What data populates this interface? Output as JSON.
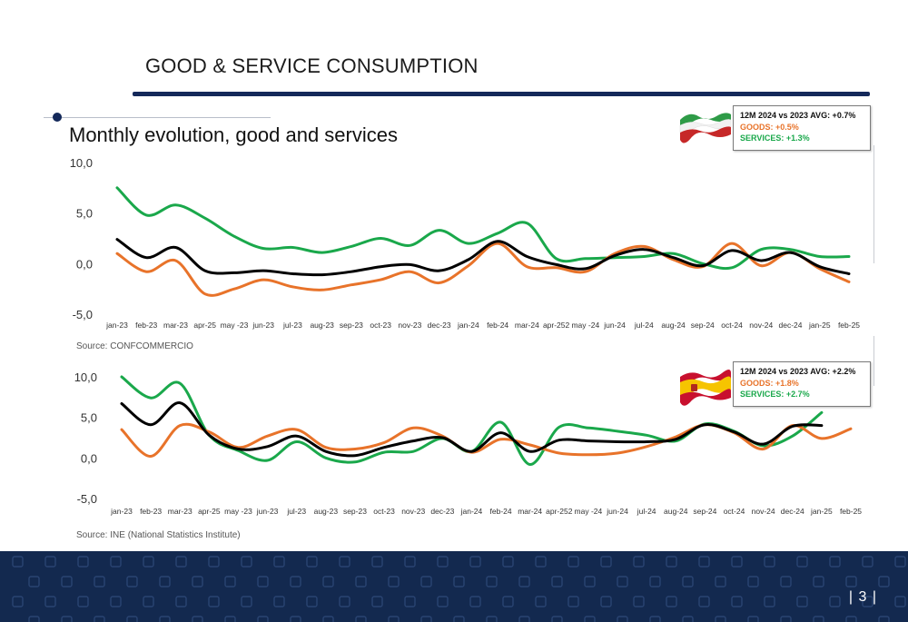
{
  "slide": {
    "title": "GOOD & SERVICE CONSUMPTION",
    "subtitle": "Monthly evolution, good and services",
    "page_number": "| 3 |"
  },
  "colors": {
    "navy": "#14295a",
    "goods": "#e8732a",
    "services": "#1aa84b",
    "total": "#000000"
  },
  "charts": [
    {
      "id": "italy",
      "flag": "italy-flag-icon",
      "source": "Source: CONFCOMMERCIO",
      "legend": {
        "line1": "12M 2024 vs 2023 AVG:  +0.7%",
        "line2": "GOODS: +0.5%",
        "line3": "SERVICES: +1.3%"
      }
    },
    {
      "id": "spain",
      "flag": "spain-flag-icon",
      "source": "Source: INE (National Statistics Institute)",
      "legend": {
        "line1": "12M 2024 vs 2023 AVG:  +2.2%",
        "line2": "GOODS: +1.8%",
        "line3": "SERVICES: +2.7%"
      }
    }
  ],
  "chart_data": [
    {
      "type": "line",
      "categories": [
        "jan-23",
        "feb-23",
        "mar-23",
        "apr-25",
        "may -23",
        "jun-23",
        "jul-23",
        "aug-23",
        "sep-23",
        "oct-23",
        "nov-23",
        "dec-23",
        "jan-24",
        "feb-24",
        "mar-24",
        "apr-252",
        "may -24",
        "jun-24",
        "jul-24",
        "aug-24",
        "sep-24",
        "oct-24",
        "nov-24",
        "dec-24",
        "jan-25",
        "feb-25"
      ],
      "yticks": [
        "10,0",
        "5,0",
        "0,0",
        "-5,0"
      ],
      "ytick_values": [
        10,
        5,
        0,
        -5
      ],
      "ylim": [
        -5,
        10
      ],
      "series": [
        {
          "key": "services",
          "values": [
            7.5,
            4.8,
            5.8,
            4.5,
            2.7,
            1.5,
            1.6,
            1.1,
            1.7,
            2.5,
            1.8,
            3.3,
            2.0,
            3.0,
            4.0,
            0.5,
            0.5,
            0.6,
            0.7,
            1.0,
            0.0,
            -0.4,
            1.4,
            1.4,
            0.7,
            0.7
          ]
        },
        {
          "key": "goods",
          "values": [
            1.0,
            -0.8,
            0.3,
            -3.0,
            -2.5,
            -1.6,
            -2.3,
            -2.6,
            -2.1,
            -1.6,
            -0.8,
            -1.9,
            -0.2,
            2.0,
            -0.3,
            -0.4,
            -0.8,
            1.0,
            1.7,
            0.4,
            -0.3,
            2.0,
            -0.2,
            1.1,
            -0.5,
            -1.8
          ]
        },
        {
          "key": "total",
          "values": [
            2.4,
            0.6,
            1.6,
            -0.7,
            -0.9,
            -0.7,
            -1.0,
            -1.1,
            -0.8,
            -0.3,
            -0.1,
            -0.7,
            0.4,
            2.2,
            0.7,
            -0.1,
            -0.5,
            0.8,
            1.4,
            0.6,
            -0.2,
            1.3,
            0.3,
            1.1,
            -0.3,
            -1.0
          ]
        }
      ]
    },
    {
      "type": "line",
      "categories": [
        "jan-23",
        "feb-23",
        "mar-23",
        "apr-25",
        "may -23",
        "jun-23",
        "jul-23",
        "aug-23",
        "sep-23",
        "oct-23",
        "nov-23",
        "dec-23",
        "jan-24",
        "feb-24",
        "mar-24",
        "apr-252",
        "may -24",
        "jun-24",
        "jul-24",
        "aug-24",
        "sep-24",
        "oct-24",
        "nov-24",
        "dec-24",
        "jan-25",
        "feb-25"
      ],
      "yticks": [
        "10,0",
        "5,0",
        "0,0",
        "-5,0"
      ],
      "ytick_values": [
        10,
        5,
        0,
        -5
      ],
      "ylim": [
        -5,
        10
      ],
      "series": [
        {
          "key": "services",
          "values": [
            10.0,
            7.4,
            9.2,
            2.8,
            0.9,
            -0.3,
            2.0,
            0.0,
            -0.5,
            0.7,
            0.8,
            2.4,
            0.8,
            4.4,
            -0.8,
            3.8,
            3.7,
            3.3,
            2.8,
            2.1,
            4.2,
            3.3,
            1.5,
            2.7,
            5.6,
            null
          ]
        },
        {
          "key": "goods",
          "values": [
            3.5,
            0.2,
            4.0,
            3.2,
            1.3,
            2.7,
            3.5,
            1.3,
            1.1,
            1.9,
            3.7,
            2.7,
            0.7,
            2.3,
            1.6,
            0.6,
            0.4,
            0.6,
            1.4,
            2.6,
            4.1,
            3.1,
            1.1,
            4.0,
            2.4,
            3.6
          ]
        },
        {
          "key": "total",
          "values": [
            6.7,
            4.1,
            6.8,
            2.8,
            1.1,
            1.4,
            2.7,
            0.8,
            0.3,
            1.3,
            2.1,
            2.5,
            0.8,
            3.1,
            0.8,
            2.2,
            2.1,
            2.0,
            2.0,
            2.3,
            4.1,
            3.2,
            1.7,
            3.9,
            4.0,
            null
          ]
        }
      ]
    }
  ]
}
